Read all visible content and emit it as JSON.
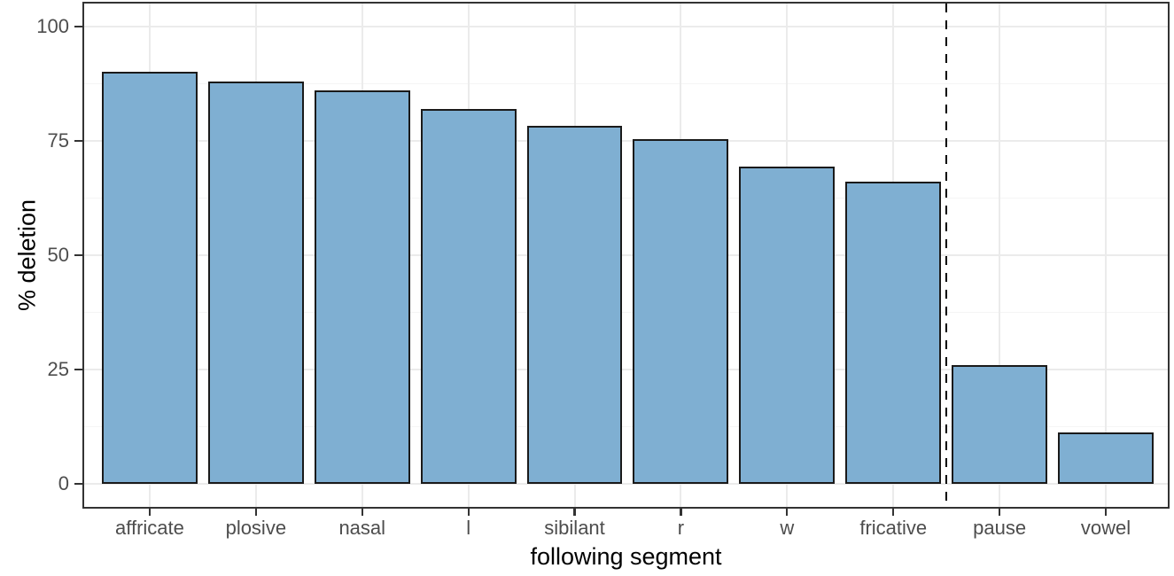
{
  "chart_data": {
    "type": "bar",
    "title": "",
    "xlabel": "following segment",
    "ylabel": "% deletion",
    "categories": [
      "affricate",
      "plosive",
      "nasal",
      "l",
      "sibilant",
      "r",
      "w",
      "fricative",
      "pause",
      "vowel"
    ],
    "values": [
      90,
      88,
      86,
      82,
      78.3,
      75.4,
      69.4,
      66,
      26,
      11.3
    ],
    "ylim": [
      0,
      100
    ],
    "yticks": [
      0,
      25,
      50,
      75,
      100
    ],
    "minor_ytick_interval": 12.5,
    "legend_position": "none",
    "grid": "on",
    "divider_line": {
      "description": "vertical dashed line between fricative and pause",
      "after_index": 7,
      "style": "dashed",
      "color": "#000000"
    },
    "colors": {
      "bar_fill": "#7FAFD2",
      "bar_stroke": "#1A1A1A",
      "panel_border": "#333333",
      "grid_major": "#EBEBEB",
      "grid_minor": "#F5F5F5",
      "tick_label": "#4D4D4D",
      "axis_title": "#000000",
      "background": "#FFFFFF"
    }
  }
}
